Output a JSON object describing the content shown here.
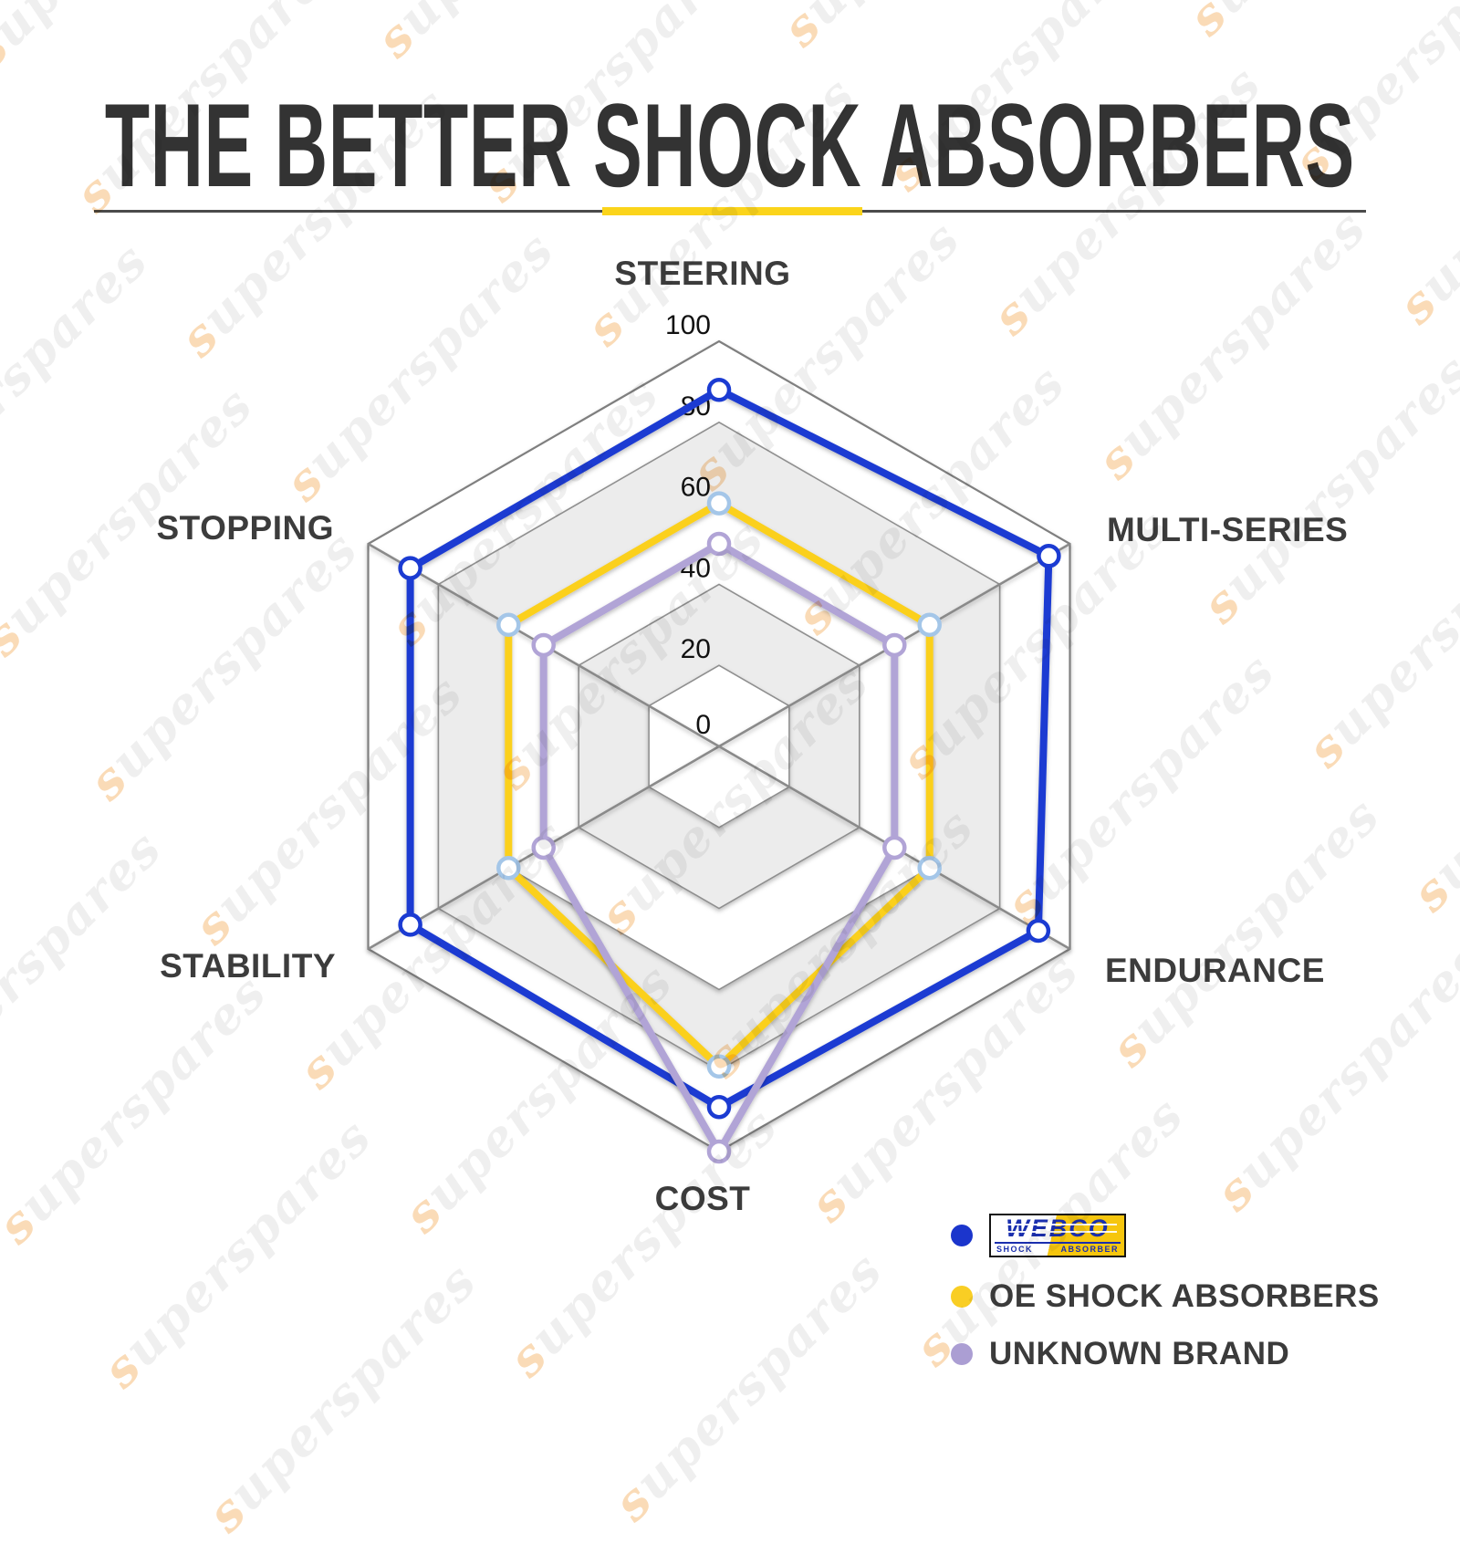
{
  "title": "THE BETTER SHOCK ABSORBERS",
  "watermark": {
    "text": "superspares"
  },
  "chart_data": {
    "type": "radar",
    "categories": [
      "STEERING",
      "MULTI-SERIES",
      "ENDURANCE",
      "COST",
      "STABILITY",
      "STOPPING"
    ],
    "axis_ticks": [
      0,
      20,
      40,
      60,
      80,
      100
    ],
    "axis_range": [
      0,
      100
    ],
    "grid": {
      "shape": "hexagon",
      "band_colors": [
        "#ffffff",
        "#ececec"
      ],
      "line_color": "#8f8f8f"
    },
    "legend_position": "bottom-right",
    "series": [
      {
        "name": "WEBCO",
        "color": "#1b3bd2",
        "marker_stroke": "#1b3bd2",
        "values": [
          88,
          94,
          91,
          89,
          88,
          88
        ]
      },
      {
        "name": "OE SHOCK ABSORBERS",
        "color": "#fbd01d",
        "marker_stroke": "#a4c6e8",
        "values": [
          60,
          60,
          60,
          79,
          60,
          60
        ]
      },
      {
        "name": "UNKNOWN BRAND",
        "color": "#b1a4d6",
        "marker_stroke": "#b1a4d6",
        "values": [
          50,
          50,
          50,
          100,
          50,
          50
        ]
      }
    ]
  },
  "legend": {
    "logo": {
      "main": "WEBCO",
      "sub_left": "SHOCK",
      "sub_right": "ABSORBER"
    },
    "items": [
      {
        "label": "WEBCO",
        "dot_color": "#1b35cc",
        "type": "logo"
      },
      {
        "label": "OE SHOCK ABSORBERS",
        "dot_color": "#f9ce24",
        "type": "text"
      },
      {
        "label": "UNKNOWN BRAND",
        "dot_color": "#ab9ed3",
        "type": "text"
      }
    ]
  }
}
